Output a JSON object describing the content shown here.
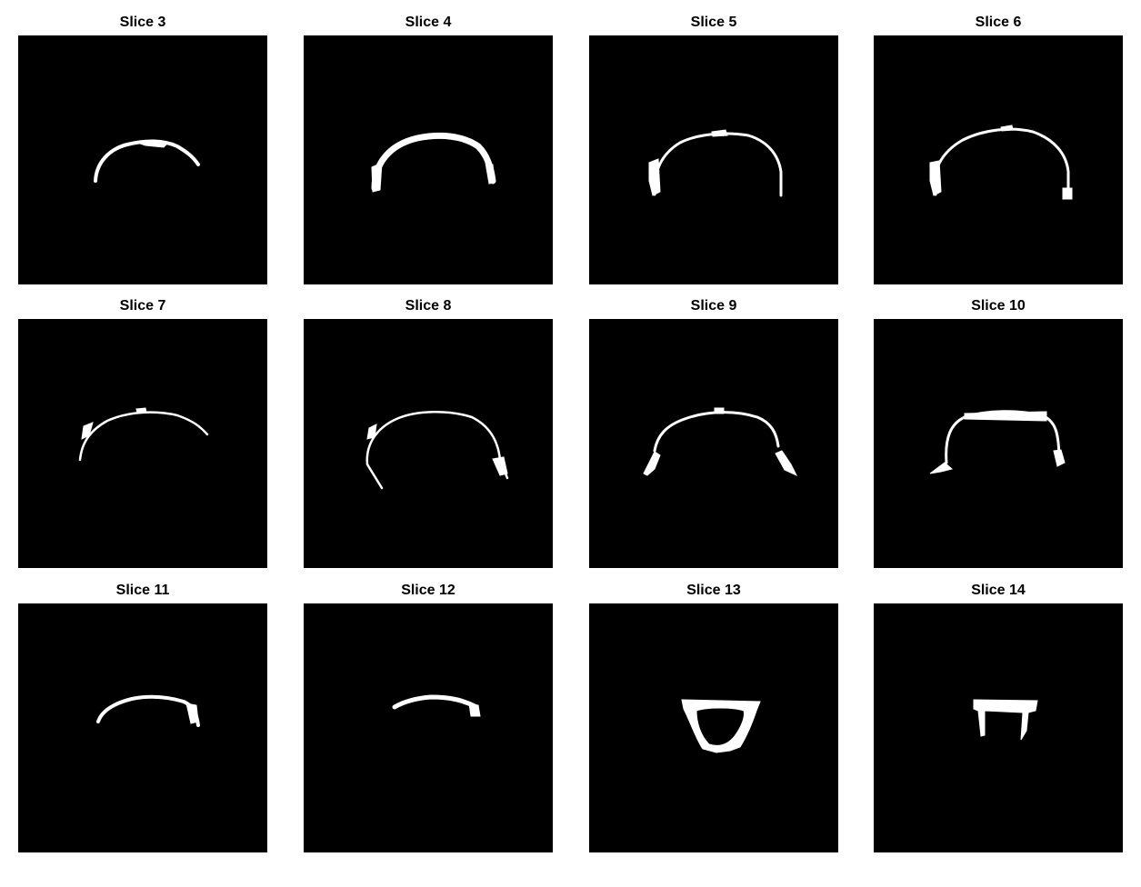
{
  "figure": {
    "background_color": "#ffffff",
    "image_background_color": "#000000",
    "mask_color": "#ffffff",
    "panels": [
      {
        "title": "Slice 3"
      },
      {
        "title": "Slice 4"
      },
      {
        "title": "Slice 5"
      },
      {
        "title": "Slice 6"
      },
      {
        "title": "Slice 7"
      },
      {
        "title": "Slice 8"
      },
      {
        "title": "Slice 9"
      },
      {
        "title": "Slice 10"
      },
      {
        "title": "Slice 11"
      },
      {
        "title": "Slice 12"
      },
      {
        "title": "Slice 13"
      },
      {
        "title": "Slice 14"
      }
    ]
  }
}
